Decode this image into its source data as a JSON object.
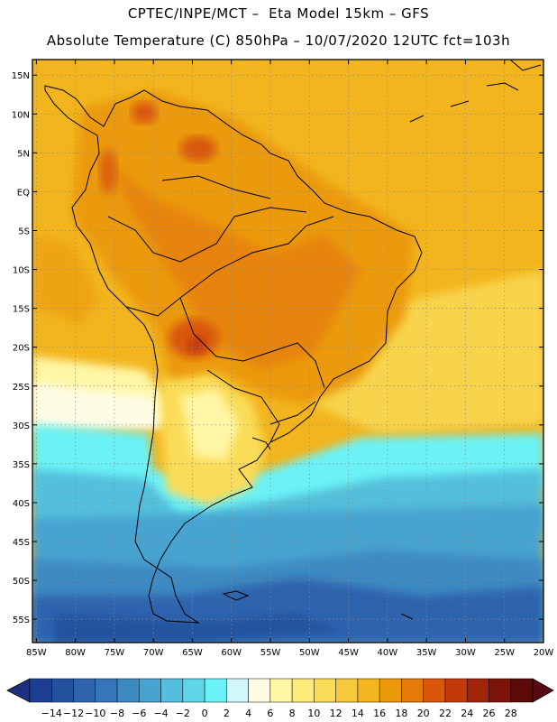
{
  "header": {
    "title": "CPTEC/INPE/MCT –  Eta Model 15km – GFS",
    "subtitle": "Absolute Temperature (C) 850hPa – 10/07/2020 12UTC fct=103h"
  },
  "axes": {
    "lat_labels": [
      "15N",
      "10N",
      "5N",
      "EQ",
      "5S",
      "10S",
      "15S",
      "20S",
      "25S",
      "30S",
      "35S",
      "40S",
      "45S",
      "50S",
      "55S"
    ],
    "lat_values": [
      15,
      10,
      5,
      0,
      -5,
      -10,
      -15,
      -20,
      -25,
      -30,
      -35,
      -40,
      -45,
      -50,
      -55
    ],
    "lon_labels": [
      "85W",
      "80W",
      "75W",
      "70W",
      "65W",
      "60W",
      "55W",
      "50W",
      "45W",
      "40W",
      "35W",
      "30W",
      "25W",
      "20W"
    ],
    "lon_values": [
      -85,
      -80,
      -75,
      -70,
      -65,
      -60,
      -55,
      -50,
      -45,
      -40,
      -35,
      -30,
      -25,
      -20
    ],
    "lon_range": [
      -85.5,
      -20
    ],
    "lat_range": [
      -58,
      17
    ],
    "grid": "dotted"
  },
  "colorbar": {
    "labels": [
      "-14",
      "-12",
      "-10",
      "-8",
      "-6",
      "-4",
      "-2",
      "0",
      "2",
      "4",
      "6",
      "8",
      "10",
      "12",
      "14",
      "16",
      "18",
      "20",
      "22",
      "24",
      "26",
      "28"
    ],
    "colors": [
      "#1c3f92",
      "#24529f",
      "#2e64ae",
      "#3676b8",
      "#3d8ac2",
      "#47a3cf",
      "#53bfdc",
      "#5ed6e8",
      "#6af2f6",
      "#d2f7fb",
      "#fffce6",
      "#fff6a6",
      "#fdec7a",
      "#fadc58",
      "#f6c93d",
      "#f2b51e",
      "#eb9a0c",
      "#e57b0b",
      "#d9560b",
      "#c23a0a",
      "#9f240a",
      "#7c1409",
      "#5c0b08"
    ],
    "arrow_left": "#1c2f80",
    "arrow_right": "#5a0716"
  }
}
